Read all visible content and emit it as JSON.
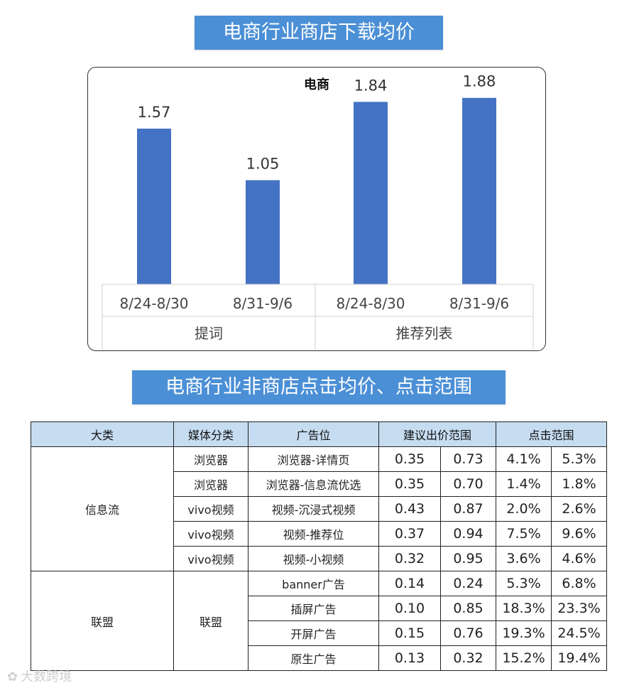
{
  "banners": {
    "top": "电商行业商店下载均价",
    "middle": "电商行业非商店点击均价、点击范围"
  },
  "chart_data": {
    "type": "bar",
    "title": "电商",
    "groups": [
      {
        "label": "提词",
        "categories": [
          "8/24-8/30",
          "8/31-9/6"
        ],
        "values": [
          1.57,
          1.05
        ]
      },
      {
        "label": "推荐列表",
        "categories": [
          "8/24-8/30",
          "8/31-9/6"
        ],
        "values": [
          1.84,
          1.88
        ]
      }
    ],
    "value_labels": [
      "1.57",
      "1.05",
      "1.84",
      "1.88"
    ],
    "ylim": [
      0,
      2
    ],
    "bar_color": "#4472c4",
    "grid": false
  },
  "table": {
    "headers": [
      "大类",
      "媒体分类",
      "广告位",
      "建议出价范围",
      "点击范围"
    ],
    "groups": [
      {
        "category": "信息流",
        "rows": [
          {
            "media": "浏览器",
            "slot": "浏览器-详情页",
            "bid_low": "0.35",
            "bid_high": "0.73",
            "ctr_low": "4.1%",
            "ctr_high": "5.3%"
          },
          {
            "media": "浏览器",
            "slot": "浏览器-信息流优选",
            "bid_low": "0.35",
            "bid_high": "0.70",
            "ctr_low": "1.4%",
            "ctr_high": "1.8%"
          },
          {
            "media": "vivo视频",
            "slot": "视频-沉浸式视频",
            "bid_low": "0.43",
            "bid_high": "0.87",
            "ctr_low": "2.0%",
            "ctr_high": "2.6%"
          },
          {
            "media": "vivo视频",
            "slot": "视频-推荐位",
            "bid_low": "0.37",
            "bid_high": "0.94",
            "ctr_low": "7.5%",
            "ctr_high": "9.6%"
          },
          {
            "media": "vivo视频",
            "slot": "视频-小视频",
            "bid_low": "0.32",
            "bid_high": "0.95",
            "ctr_low": "3.6%",
            "ctr_high": "4.6%"
          }
        ]
      },
      {
        "category": "联盟",
        "media": "联盟",
        "rows": [
          {
            "slot": "banner广告",
            "bid_low": "0.14",
            "bid_high": "0.24",
            "ctr_low": "5.3%",
            "ctr_high": "6.8%"
          },
          {
            "slot": "插屏广告",
            "bid_low": "0.10",
            "bid_high": "0.85",
            "ctr_low": "18.3%",
            "ctr_high": "23.3%"
          },
          {
            "slot": "开屏广告",
            "bid_low": "0.15",
            "bid_high": "0.76",
            "ctr_low": "19.3%",
            "ctr_high": "24.5%"
          },
          {
            "slot": "原生广告",
            "bid_low": "0.13",
            "bid_high": "0.32",
            "ctr_low": "15.2%",
            "ctr_high": "19.4%"
          }
        ]
      }
    ]
  },
  "watermark": {
    "text": "大数跨境",
    "icon": "logo-icon"
  }
}
